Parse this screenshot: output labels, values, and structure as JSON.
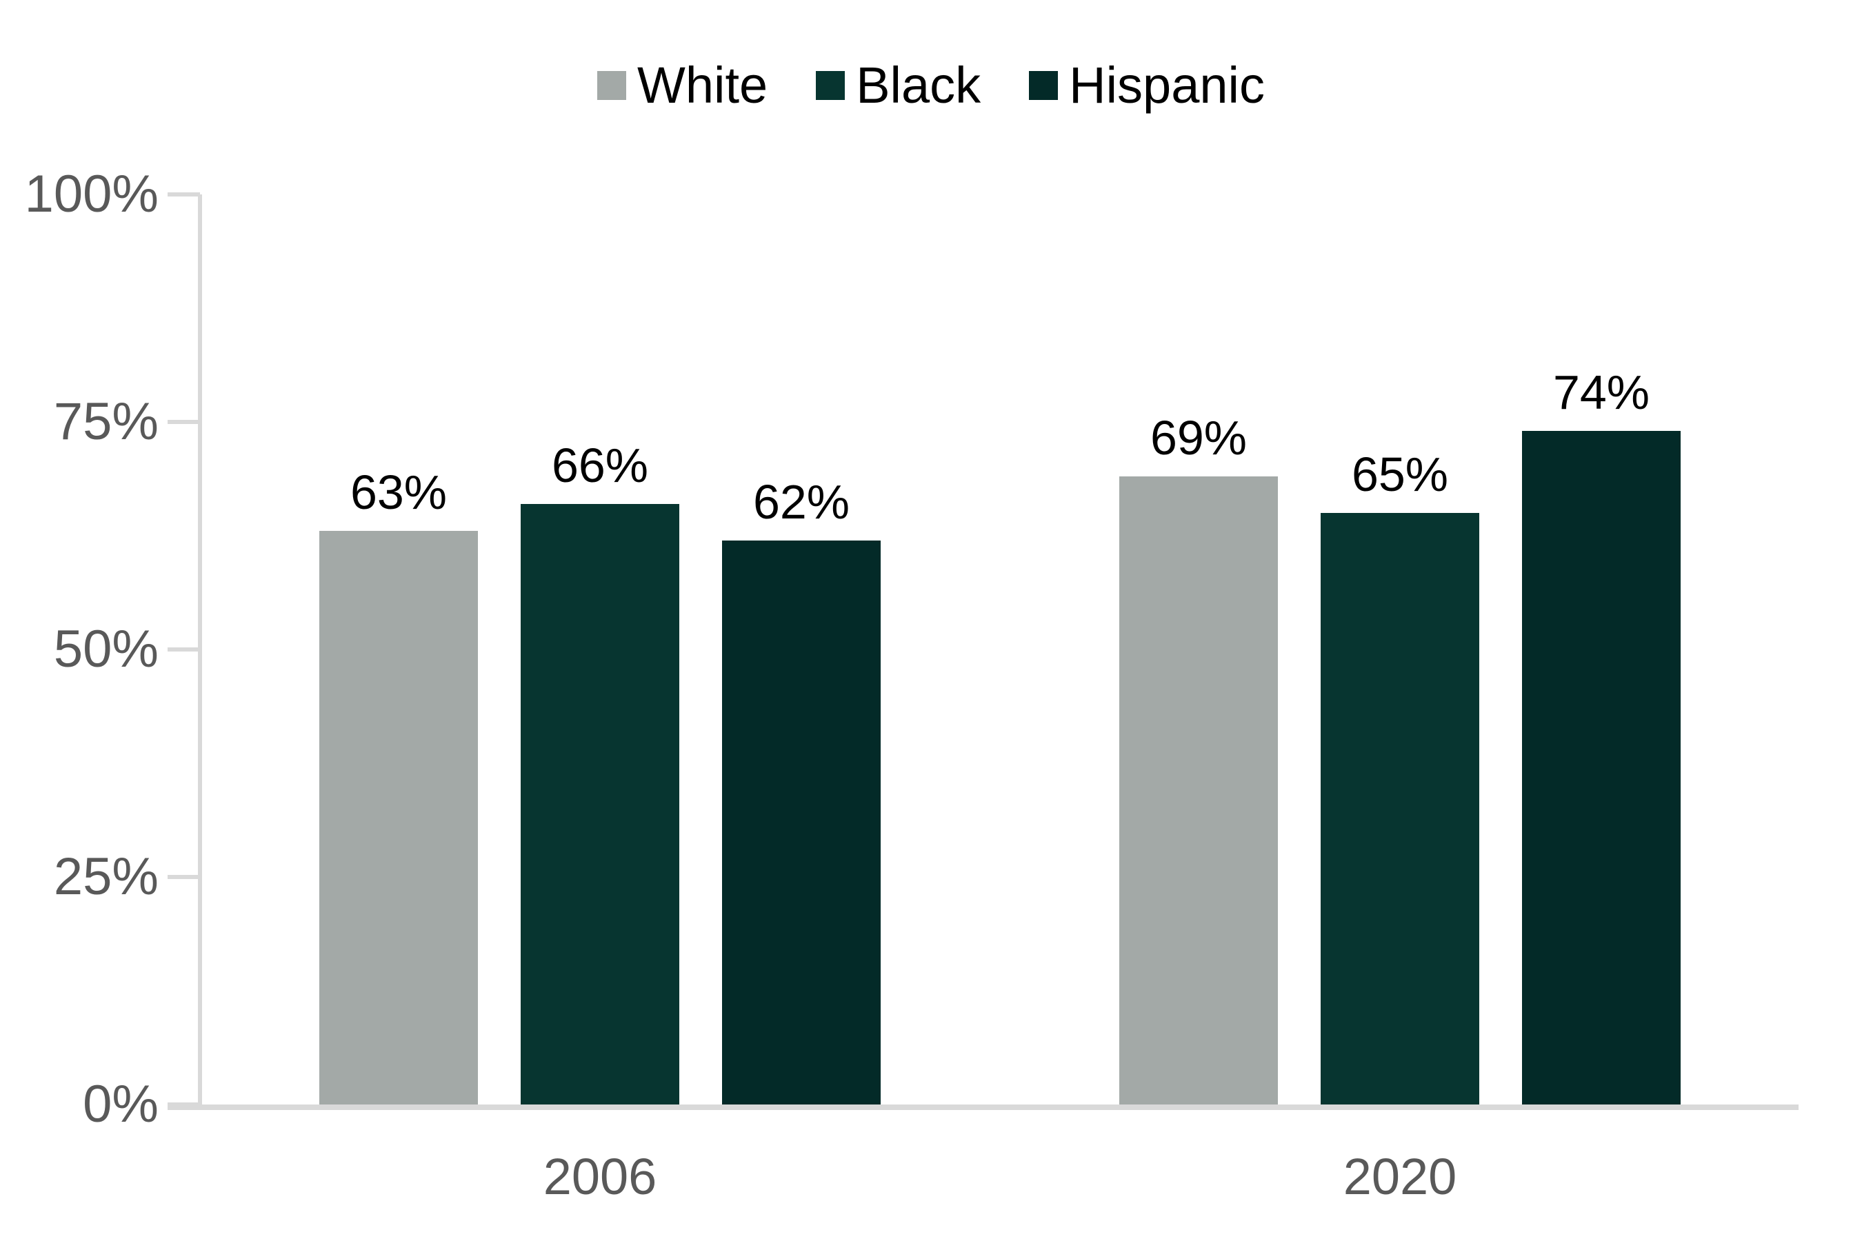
{
  "chart_data": {
    "type": "bar",
    "title": "",
    "categories": [
      "2006",
      "2020"
    ],
    "series": [
      {
        "name": "White",
        "color": "#a3a9a7",
        "values": [
          63,
          69
        ],
        "value_labels": [
          "63%",
          "69%"
        ]
      },
      {
        "name": "Black",
        "color": "#073530",
        "values": [
          66,
          65
        ],
        "value_labels": [
          "66%",
          "65%"
        ]
      },
      {
        "name": "Hispanic",
        "color": "#032a28",
        "values": [
          62,
          74
        ],
        "value_labels": [
          "62%",
          "74%"
        ]
      }
    ],
    "y_ticks": [
      "100%",
      "75%",
      "50%",
      "25%",
      "0%"
    ],
    "y_tick_values": [
      100,
      75,
      50,
      25,
      0
    ],
    "ylim": [
      0,
      100
    ],
    "xlabel": "",
    "ylabel": "",
    "legend_position": "top",
    "grid": false,
    "data_labels_shown": true,
    "colors": {
      "axis_line": "#d9d9d9",
      "axis_label": "#595959",
      "data_label": "#000000",
      "legend_label": "#000000",
      "background": "#ffffff"
    }
  }
}
